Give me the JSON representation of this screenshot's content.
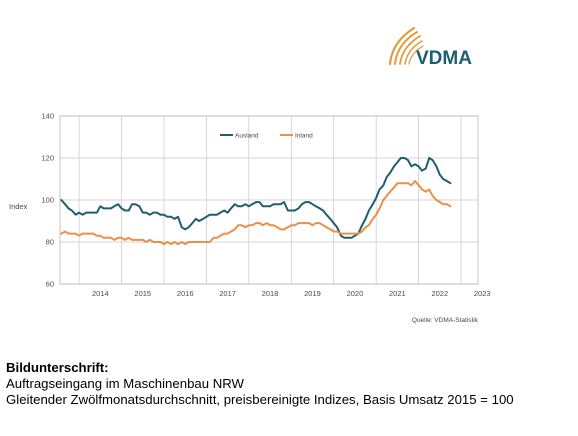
{
  "logo": {
    "text": "VDMA"
  },
  "chart_data": {
    "type": "line",
    "title": "",
    "xlabel": "",
    "ylabel": "Index",
    "ylim": [
      60,
      140
    ],
    "yticks": [
      60,
      80,
      100,
      120,
      140
    ],
    "xlim": [
      2013.55,
      2023.4
    ],
    "xticks": [
      "2014",
      "2015",
      "2016",
      "2017",
      "2018",
      "2019",
      "2020",
      "2021",
      "2022",
      "2023"
    ],
    "grid": true,
    "legend_position": "top",
    "source": "Quelle: VDMA-Statistik",
    "series": [
      {
        "name": "Ausland",
        "color": "#1d5f6f",
        "x": [
          2013.58,
          2013.67,
          2013.75,
          2013.83,
          2013.92,
          2014.0,
          2014.08,
          2014.17,
          2014.25,
          2014.33,
          2014.42,
          2014.5,
          2014.58,
          2014.67,
          2014.75,
          2014.83,
          2014.92,
          2015.0,
          2015.08,
          2015.17,
          2015.25,
          2015.33,
          2015.42,
          2015.5,
          2015.58,
          2015.67,
          2015.75,
          2015.83,
          2015.92,
          2016.0,
          2016.08,
          2016.17,
          2016.25,
          2016.33,
          2016.42,
          2016.5,
          2016.58,
          2016.67,
          2016.75,
          2016.83,
          2016.92,
          2017.0,
          2017.08,
          2017.17,
          2017.25,
          2017.33,
          2017.42,
          2017.5,
          2017.58,
          2017.67,
          2017.75,
          2017.83,
          2017.92,
          2018.0,
          2018.08,
          2018.17,
          2018.25,
          2018.33,
          2018.42,
          2018.5,
          2018.58,
          2018.67,
          2018.75,
          2018.83,
          2018.92,
          2019.0,
          2019.08,
          2019.17,
          2019.25,
          2019.33,
          2019.42,
          2019.5,
          2019.58,
          2019.67,
          2019.75,
          2019.83,
          2019.92,
          2020.0,
          2020.08,
          2020.17,
          2020.25,
          2020.33,
          2020.42,
          2020.5,
          2020.58,
          2020.67,
          2020.75,
          2020.83,
          2020.92,
          2021.0,
          2021.08,
          2021.17,
          2021.25,
          2021.33,
          2021.42,
          2021.5,
          2021.58,
          2021.67,
          2021.75,
          2021.83,
          2021.92,
          2022.0,
          2022.08,
          2022.17,
          2022.25,
          2022.33,
          2022.42,
          2022.5,
          2022.58,
          2022.67,
          2022.75
        ],
        "values": [
          100,
          98,
          96,
          95,
          93,
          94,
          93,
          94,
          94,
          94,
          94,
          97,
          96,
          96,
          96,
          97,
          98,
          96,
          95,
          95,
          98,
          98,
          97,
          94,
          94,
          93,
          94,
          94,
          93,
          93,
          92,
          92,
          91,
          92,
          87,
          86,
          87,
          89,
          91,
          90,
          91,
          92,
          93,
          93,
          93,
          94,
          95,
          94,
          96,
          98,
          97,
          97,
          98,
          97,
          98,
          99,
          99,
          97,
          97,
          97,
          98,
          98,
          98,
          99,
          95,
          95,
          95,
          96,
          98,
          99,
          99,
          98,
          97,
          96,
          95,
          93,
          91,
          89,
          87,
          83,
          82,
          82,
          82,
          83,
          84,
          88,
          91,
          95,
          98,
          101,
          105,
          107,
          111,
          113,
          116,
          118,
          120,
          120,
          119,
          116,
          117,
          116,
          114,
          115,
          120,
          119,
          116,
          112,
          110,
          109,
          108
        ]
      },
      {
        "name": "Inland",
        "color": "#e9904a",
        "x": [
          2013.58,
          2013.67,
          2013.75,
          2013.83,
          2013.92,
          2014.0,
          2014.08,
          2014.17,
          2014.25,
          2014.33,
          2014.42,
          2014.5,
          2014.58,
          2014.67,
          2014.75,
          2014.83,
          2014.92,
          2015.0,
          2015.08,
          2015.17,
          2015.25,
          2015.33,
          2015.42,
          2015.5,
          2015.58,
          2015.67,
          2015.75,
          2015.83,
          2015.92,
          2016.0,
          2016.08,
          2016.17,
          2016.25,
          2016.33,
          2016.42,
          2016.5,
          2016.58,
          2016.67,
          2016.75,
          2016.83,
          2016.92,
          2017.0,
          2017.08,
          2017.17,
          2017.25,
          2017.33,
          2017.42,
          2017.5,
          2017.58,
          2017.67,
          2017.75,
          2017.83,
          2017.92,
          2018.0,
          2018.08,
          2018.17,
          2018.25,
          2018.33,
          2018.42,
          2018.5,
          2018.58,
          2018.67,
          2018.75,
          2018.83,
          2018.92,
          2019.0,
          2019.08,
          2019.17,
          2019.25,
          2019.33,
          2019.42,
          2019.5,
          2019.58,
          2019.67,
          2019.75,
          2019.83,
          2019.92,
          2020.0,
          2020.08,
          2020.17,
          2020.25,
          2020.33,
          2020.42,
          2020.5,
          2020.58,
          2020.67,
          2020.75,
          2020.83,
          2020.92,
          2021.0,
          2021.08,
          2021.17,
          2021.25,
          2021.33,
          2021.42,
          2021.5,
          2021.58,
          2021.67,
          2021.75,
          2021.83,
          2021.92,
          2022.0,
          2022.08,
          2022.17,
          2022.25,
          2022.33,
          2022.42,
          2022.5,
          2022.58,
          2022.67,
          2022.75
        ],
        "values": [
          84,
          85,
          84,
          84,
          84,
          83,
          84,
          84,
          84,
          84,
          83,
          83,
          82,
          82,
          82,
          81,
          82,
          82,
          81,
          82,
          81,
          81,
          81,
          81,
          80,
          81,
          80,
          80,
          80,
          79,
          80,
          79,
          80,
          79,
          80,
          79,
          80,
          80,
          80,
          80,
          80,
          80,
          80,
          82,
          82,
          83,
          84,
          84,
          85,
          86,
          88,
          88,
          87,
          88,
          88,
          89,
          89,
          88,
          89,
          88,
          88,
          87,
          86,
          86,
          87,
          88,
          88,
          89,
          89,
          89,
          89,
          88,
          89,
          89,
          88,
          87,
          86,
          85,
          85,
          84,
          84,
          84,
          84,
          84,
          84,
          85,
          87,
          88,
          91,
          93,
          96,
          100,
          102,
          104,
          106,
          108,
          108,
          108,
          108,
          107,
          109,
          107,
          105,
          104,
          105,
          102,
          100,
          99,
          98,
          98,
          97
        ]
      }
    ]
  },
  "caption": {
    "heading": "Bildunterschrift:",
    "line1": "Auftragseingang im Maschinenbau NRW",
    "line2": "Gleitender Zwölfmonatsdurchschnitt, preisbereinigte Indizes, Basis Umsatz 2015 = 100"
  }
}
